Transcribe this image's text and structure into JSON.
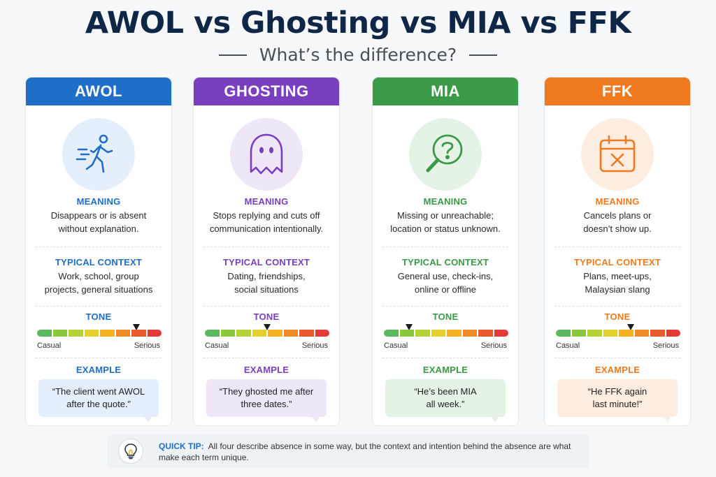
{
  "header": {
    "title": "AWOL vs Ghosting vs MIA vs FFK",
    "subtitle": "What’s the difference?"
  },
  "labels": {
    "meaning": "MEANING",
    "context": "TYPICAL CONTEXT",
    "tone": "TONE",
    "example": "EXAMPLE",
    "casual": "Casual",
    "serious": "Serious"
  },
  "tone_scale": [
    "#5cb85c",
    "#8cc63f",
    "#b5d334",
    "#e3d02c",
    "#f5b120",
    "#f08a24",
    "#ea5a2a",
    "#e53935"
  ],
  "cards": [
    {
      "title": "AWOL",
      "icon": "walking-person-icon",
      "accent": "#1f6fc8",
      "tint": "#e5effb",
      "meaning": "Disappears or is absent\nwithout explanation.",
      "context": "Work, school, group\nprojects, general situations",
      "tone_level": 0.8,
      "example": "“The client went AWOL\nafter the quote.”"
    },
    {
      "title": "GHOSTING",
      "icon": "ghost-icon",
      "accent": "#7a3fbf",
      "tint": "#efe6f8",
      "meaning": "Stops replying and cuts off\ncommunication intentionally.",
      "context": "Dating, friendships,\nsocial situations",
      "tone_level": 0.5,
      "example": "“They ghosted me after\nthree dates.”"
    },
    {
      "title": "MIA",
      "icon": "magnifier-question-icon",
      "accent": "#3b9a47",
      "tint": "#e5f3e6",
      "meaning": "Missing or unreachable;\nlocation or status unknown.",
      "context": "General use, check-ins,\nonline or offline",
      "tone_level": 0.2,
      "example": "“He’s been MIA\nall week.”"
    },
    {
      "title": "FFK",
      "icon": "calendar-cancel-icon",
      "accent": "#f07a1f",
      "tint": "#fdece0",
      "meaning": "Cancels plans or\ndoesn’t show up.",
      "context": "Plans, meet-ups,\nMalaysian slang",
      "tone_level": 0.6,
      "example": "“He FFK again\nlast minute!”"
    }
  ],
  "tip": {
    "label": "QUICK TIP:",
    "text": "All four describe absence in some way, but the context and intention behind the absence are what make each term unique.",
    "icon": "lightbulb-icon"
  }
}
